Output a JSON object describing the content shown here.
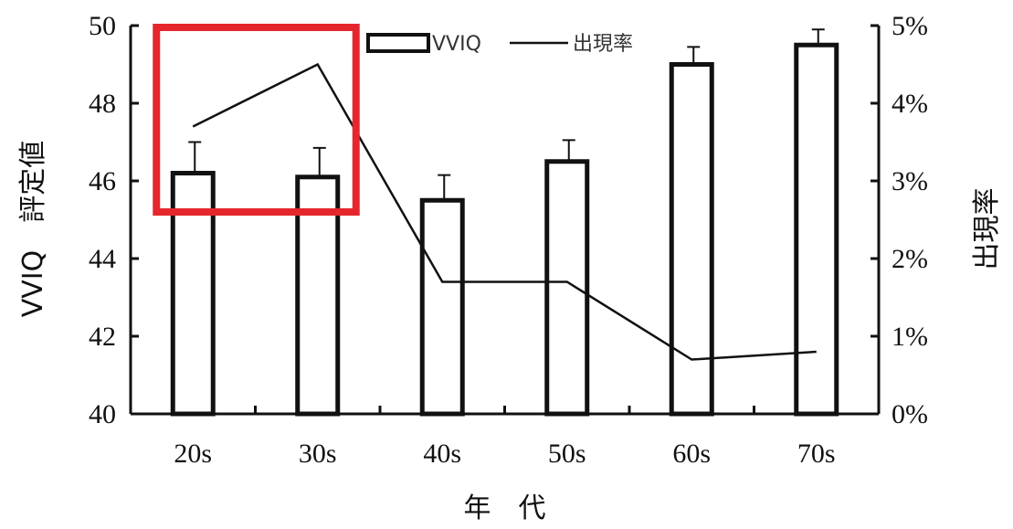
{
  "chart_data": {
    "type": "bar",
    "categories": [
      "20s",
      "30s",
      "40s",
      "50s",
      "60s",
      "70s"
    ],
    "series": [
      {
        "name": "VVIQ",
        "type": "bar",
        "axis": "left",
        "values": [
          46.2,
          46.1,
          45.5,
          46.5,
          49.0,
          49.5
        ],
        "error": [
          0.8,
          0.75,
          0.65,
          0.55,
          0.45,
          0.4
        ]
      },
      {
        "name": "出現率",
        "type": "line",
        "axis": "right",
        "values": [
          3.7,
          4.5,
          1.7,
          1.7,
          0.7,
          0.8
        ]
      }
    ],
    "xlabel": "年　代",
    "ylabel_left": "VVIQ　評定値",
    "ylabel_right": "出現率",
    "ylim_left": [
      40,
      50
    ],
    "yticks_left": [
      "40",
      "42",
      "44",
      "46",
      "48",
      "50"
    ],
    "ylim_right": [
      0,
      5
    ],
    "yticks_right": [
      "0%",
      "1%",
      "2%",
      "3%",
      "4%",
      "5%"
    ],
    "legend_position": "top",
    "grid": false,
    "highlight": {
      "color": "#e5262d",
      "from_category": "20s",
      "to_category": "30s",
      "y_left_range": [
        45.2,
        50
      ]
    }
  }
}
